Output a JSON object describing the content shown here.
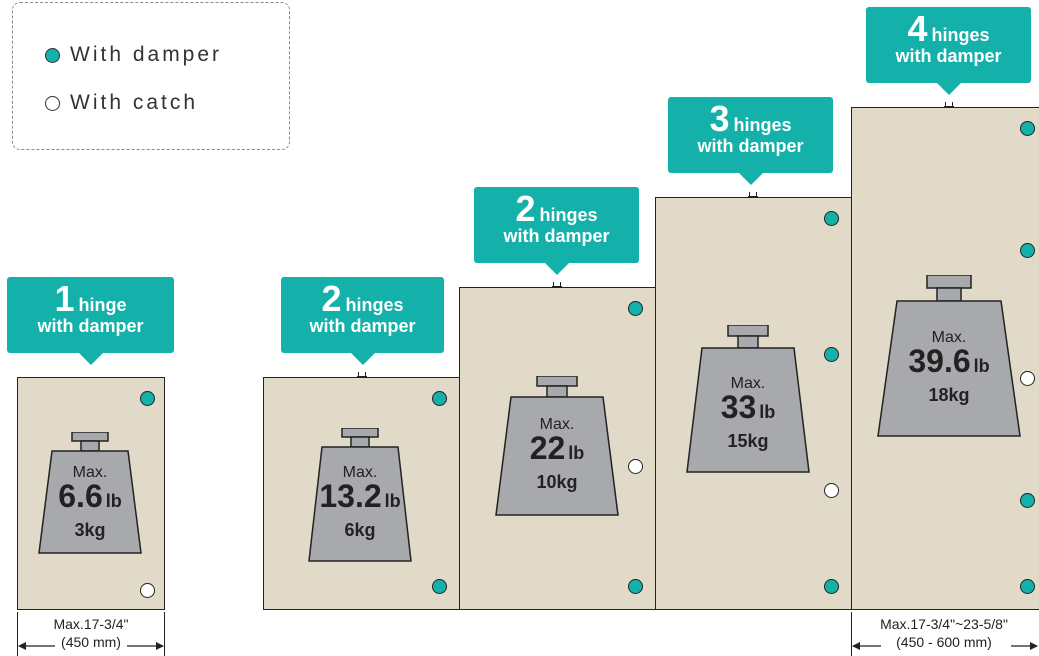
{
  "legend": {
    "damper_label": "With damper",
    "catch_label": "With catch",
    "damper_color": "#14b1ab",
    "catch_color": "#ffffff"
  },
  "panel_color": "#e1dac9",
  "cabinets": [
    {
      "hinge_count": "1",
      "hinge_word": "hinge",
      "hinge_type": "with damper",
      "max_label": "Max.",
      "lb_value": "6.6",
      "lb_unit": "lb",
      "kg_value": "3kg",
      "holes": [
        "damper",
        "catch"
      ]
    },
    {
      "hinge_count": "2",
      "hinge_word": "hinges",
      "hinge_type": "with damper",
      "max_label": "Max.",
      "lb_value": "13.2",
      "lb_unit": "lb",
      "kg_value": "6kg",
      "holes": [
        "damper",
        "damper"
      ]
    },
    {
      "hinge_count": "2",
      "hinge_word": "hinges",
      "hinge_type": "with damper",
      "max_label": "Max.",
      "lb_value": "22",
      "lb_unit": "lb",
      "kg_value": "10kg",
      "holes": [
        "damper",
        "catch",
        "damper"
      ]
    },
    {
      "hinge_count": "3",
      "hinge_word": "hinges",
      "hinge_type": "with damper",
      "max_label": "Max.",
      "lb_value": "33",
      "lb_unit": "lb",
      "kg_value": "15kg",
      "holes": [
        "damper",
        "damper",
        "catch",
        "damper"
      ]
    },
    {
      "hinge_count": "4",
      "hinge_word": "hinges",
      "hinge_type": "with damper",
      "max_label": "Max.",
      "lb_value": "39.6",
      "lb_unit": "lb",
      "kg_value": "18kg",
      "holes": [
        "damper",
        "damper",
        "catch",
        "damper",
        "damper"
      ]
    }
  ],
  "dimensions": {
    "small": {
      "line1": "Max.17-3/4\"",
      "line2": "(450 mm)"
    },
    "large": {
      "line1": "Max.17-3/4\"~23-5/8\"",
      "line2": "(450 - 600 mm)"
    }
  }
}
